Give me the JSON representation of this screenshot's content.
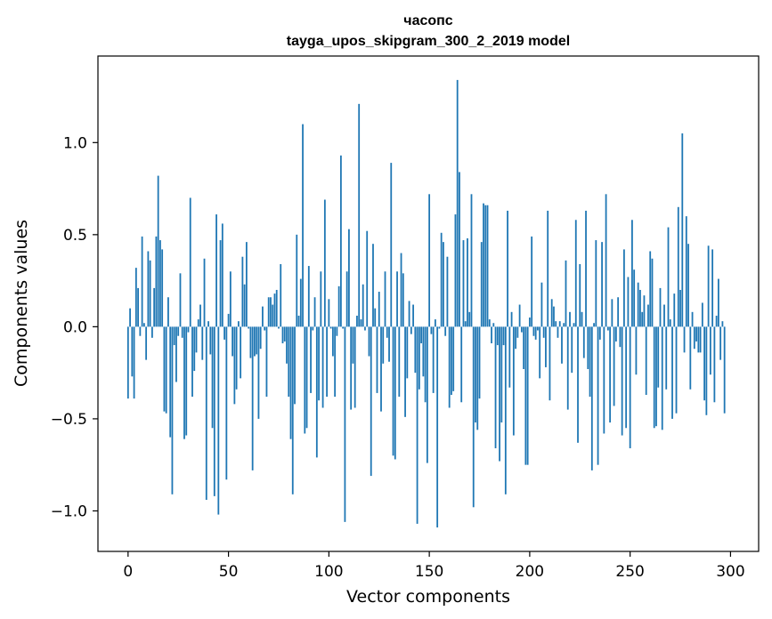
{
  "chart_data": {
    "type": "bar",
    "title": "часопс",
    "subtitle": "tayga_upos_skipgram_300_2_2019 model",
    "xlabel": "Vector components",
    "ylabel": "Components values",
    "xlim": [
      -15,
      314
    ],
    "ylim": [
      -1.22,
      1.47
    ],
    "xticks": [
      0,
      50,
      100,
      150,
      200,
      250,
      300
    ],
    "xtick_labels": [
      "0",
      "50",
      "100",
      "150",
      "200",
      "250",
      "300"
    ],
    "yticks": [
      -1.0,
      -0.5,
      0.0,
      0.5,
      1.0
    ],
    "ytick_labels": [
      "−1.0",
      "−0.5",
      "0.0",
      "0.5",
      "1.0"
    ],
    "bar_color": "#1f77b4",
    "values": [
      -0.39,
      0.1,
      -0.27,
      -0.39,
      0.32,
      0.21,
      -0.05,
      0.49,
      0.02,
      -0.18,
      0.41,
      0.36,
      -0.06,
      0.21,
      0.49,
      0.82,
      0.47,
      0.42,
      -0.46,
      -0.47,
      0.16,
      -0.6,
      -0.91,
      -0.1,
      -0.3,
      -0.05,
      0.29,
      -0.06,
      -0.61,
      -0.59,
      -0.03,
      0.7,
      -0.38,
      -0.24,
      -0.14,
      0.04,
      0.12,
      -0.18,
      0.37,
      -0.94,
      0.03,
      -0.15,
      -0.55,
      -0.92,
      0.61,
      -1.02,
      0.47,
      0.56,
      -0.07,
      -0.83,
      0.07,
      0.3,
      -0.16,
      -0.42,
      -0.34,
      0.03,
      -0.28,
      0.38,
      0.23,
      0.46,
      -0.01,
      -0.17,
      -0.78,
      -0.16,
      -0.15,
      -0.5,
      -0.12,
      0.11,
      -0.02,
      -0.38,
      0.16,
      0.16,
      0.12,
      0.18,
      0.2,
      -0.01,
      0.34,
      -0.09,
      -0.08,
      -0.2,
      -0.38,
      -0.61,
      -0.91,
      -0.42,
      0.5,
      0.06,
      0.26,
      1.1,
      -0.58,
      -0.55,
      0.33,
      -0.36,
      -0.02,
      0.16,
      -0.71,
      -0.4,
      0.3,
      -0.44,
      0.69,
      -0.38,
      0.15,
      -0.01,
      -0.16,
      -0.38,
      -0.05,
      0.22,
      0.93,
      -0.01,
      -1.06,
      0.3,
      0.53,
      -0.45,
      -0.2,
      -0.44,
      0.06,
      1.21,
      0.04,
      0.23,
      -0.02,
      0.52,
      -0.16,
      -0.81,
      0.45,
      0.1,
      -0.36,
      0.19,
      -0.46,
      -0.2,
      0.3,
      -0.06,
      -0.19,
      0.89,
      -0.7,
      -0.72,
      0.3,
      -0.38,
      0.4,
      0.29,
      -0.49,
      -0.28,
      0.14,
      -0.04,
      0.12,
      -0.25,
      -1.07,
      -0.34,
      -0.09,
      -0.27,
      -0.41,
      -0.74,
      0.72,
      -0.04,
      -0.36,
      0.04,
      -1.09,
      -0.01,
      0.51,
      0.46,
      -0.05,
      0.38,
      -0.44,
      -0.37,
      -0.35,
      0.61,
      1.34,
      0.84,
      -0.41,
      0.47,
      0.03,
      0.48,
      0.08,
      0.72,
      -0.98,
      -0.52,
      -0.56,
      -0.39,
      0.46,
      0.67,
      0.66,
      0.66,
      0.04,
      -0.09,
      0.02,
      -0.66,
      -0.1,
      -0.73,
      -0.52,
      -0.1,
      -0.91,
      0.63,
      -0.33,
      0.08,
      -0.59,
      -0.12,
      -0.06,
      0.12,
      -0.03,
      -0.23,
      -0.75,
      -0.75,
      0.05,
      0.49,
      -0.05,
      -0.07,
      -0.02,
      -0.28,
      0.24,
      -0.06,
      -0.22,
      0.63,
      -0.4,
      0.15,
      0.11,
      0.03,
      -0.06,
      0.03,
      -0.2,
      0.02,
      0.36,
      -0.45,
      0.08,
      -0.25,
      0.02,
      0.58,
      -0.63,
      0.34,
      0.08,
      -0.17,
      0.63,
      -0.23,
      -0.38,
      -0.78,
      0.02,
      0.47,
      -0.75,
      -0.07,
      0.46,
      -0.58,
      0.72,
      -0.02,
      -0.52,
      0.15,
      -0.43,
      -0.08,
      0.16,
      -0.11,
      -0.59,
      0.42,
      -0.55,
      0.27,
      -0.66,
      0.58,
      0.31,
      -0.26,
      0.24,
      0.2,
      0.08,
      0.17,
      -0.37,
      0.12,
      0.41,
      0.37,
      -0.55,
      -0.54,
      -0.33,
      0.21,
      -0.56,
      0.12,
      -0.34,
      0.54,
      0.04,
      -0.5,
      0.18,
      -0.47,
      0.65,
      0.2,
      1.05,
      -0.14,
      0.6,
      0.45,
      -0.34,
      0.08,
      -0.12,
      -0.08,
      -0.14,
      -0.14,
      0.13,
      -0.4,
      -0.48,
      0.44,
      -0.26,
      0.42,
      -0.41,
      0.06,
      0.26,
      -0.18,
      0.03,
      -0.47
    ]
  }
}
